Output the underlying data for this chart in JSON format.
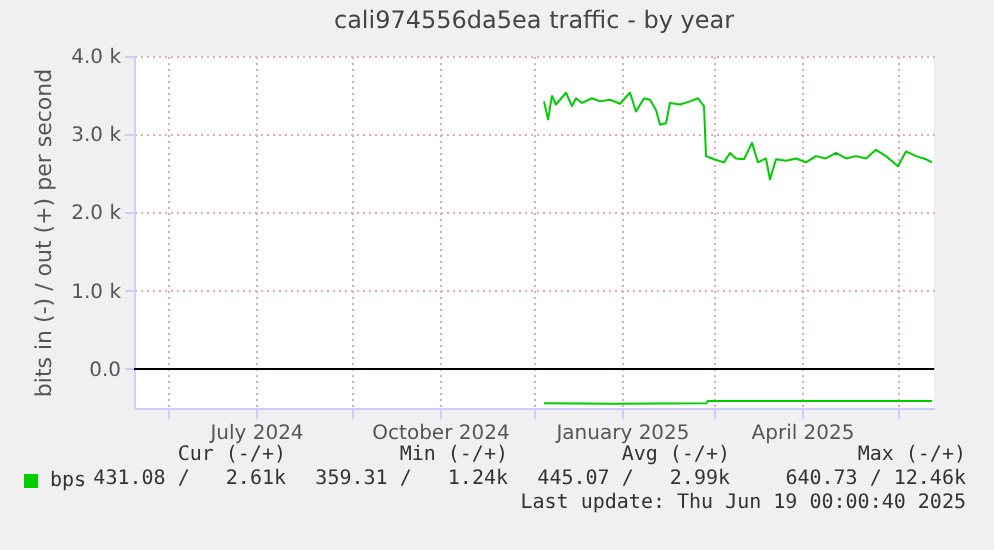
{
  "chart_data": {
    "type": "line",
    "title": "cali974556da5ea traffic - by year",
    "ylabel": "bits in (-) / out (+) per second",
    "xlim": [
      "2024-05-15",
      "2025-06-19"
    ],
    "xticks": [
      {
        "value": "2024-06-01",
        "label": null
      },
      {
        "value": "2024-07-15",
        "label": "July 2024"
      },
      {
        "value": "2024-09-01",
        "label": null
      },
      {
        "value": "2024-10-15",
        "label": "October 2024"
      },
      {
        "value": "2024-12-01",
        "label": null
      },
      {
        "value": "2025-01-14",
        "label": "January 2025"
      },
      {
        "value": "2025-03-01",
        "label": null
      },
      {
        "value": "2025-04-14",
        "label": "April 2025"
      },
      {
        "value": "2025-06-01",
        "label": null
      }
    ],
    "ylim": [
      -500,
      4000
    ],
    "yticks": [
      {
        "value": 0,
        "label": "0.0"
      },
      {
        "value": 1000,
        "label": "1.0 k"
      },
      {
        "value": 2000,
        "label": "2.0 k"
      },
      {
        "value": 3000,
        "label": "3.0 k"
      },
      {
        "value": 4000,
        "label": "4.0 k"
      }
    ],
    "grid": true,
    "legend": "bottom left",
    "line_style": "solid",
    "ref_lines": [
      {
        "axis": "y",
        "value": 0,
        "color": "#000000"
      }
    ],
    "series": [
      {
        "name": "bps",
        "color": "#00cc00",
        "x": [
          "2024-12-06",
          "2024-12-08",
          "2024-12-10",
          "2024-12-12",
          "2024-12-17",
          "2024-12-20",
          "2024-12-22",
          "2024-12-25",
          "2024-12-30",
          "2025-01-03",
          "2025-01-08",
          "2025-01-13",
          "2025-01-18",
          "2025-01-21",
          "2025-01-25",
          "2025-01-28",
          "2025-01-31",
          "2025-02-02",
          "2025-02-05",
          "2025-02-07",
          "2025-02-12",
          "2025-02-17",
          "2025-02-21",
          "2025-02-24",
          "2025-02-25",
          "2025-03-01",
          "2025-03-06",
          "2025-03-09",
          "2025-03-12",
          "2025-03-16",
          "2025-03-20",
          "2025-03-23",
          "2025-03-27",
          "2025-03-29",
          "2025-04-01",
          "2025-04-06",
          "2025-04-11",
          "2025-04-16",
          "2025-04-21",
          "2025-04-26",
          "2025-05-01",
          "2025-05-06",
          "2025-05-11",
          "2025-05-16",
          "2025-05-21",
          "2025-05-26",
          "2025-06-01",
          "2025-06-05",
          "2025-06-10",
          "2025-06-15",
          "2025-06-18"
        ],
        "values": [
          3420,
          3190,
          3490,
          3380,
          3530,
          3360,
          3460,
          3400,
          3460,
          3420,
          3440,
          3390,
          3530,
          3290,
          3460,
          3440,
          3310,
          3120,
          3140,
          3400,
          3380,
          3420,
          3460,
          3360,
          2720,
          2680,
          2640,
          2760,
          2690,
          2680,
          2890,
          2640,
          2690,
          2420,
          2680,
          2660,
          2690,
          2640,
          2720,
          2690,
          2760,
          2690,
          2720,
          2690,
          2800,
          2720,
          2590,
          2780,
          2720,
          2680,
          2640
        ]
      },
      {
        "color": "#00cc00",
        "x": [
          "2024-12-06",
          "2025-01-10",
          "2025-02-25",
          "2025-02-26",
          "2025-04-15",
          "2025-06-18"
        ],
        "values": [
          -440,
          -445,
          -440,
          -410,
          -410,
          -410
        ]
      }
    ],
    "annotations": [
      "Cur (-/+)",
      "Min (-/+)",
      "Avg (-/+)",
      "Max (-/+)",
      "431.08 /   2.61k",
      "359.31 /   1.24k",
      "445.07 /   2.99k",
      "640.73 / 12.46k",
      "Last update: Thu Jun 19 00:00:40 2025"
    ]
  }
}
